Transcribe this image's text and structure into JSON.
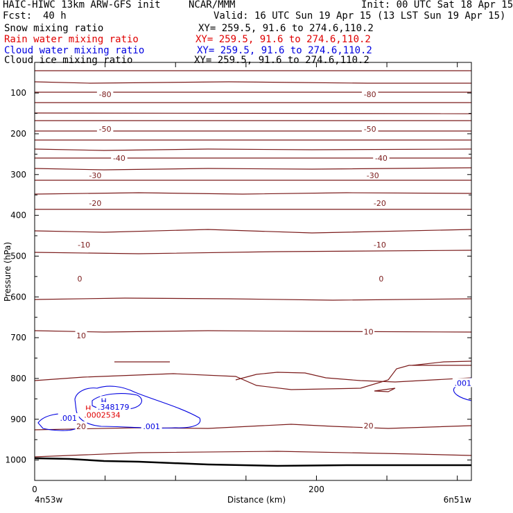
{
  "header": {
    "model": "HAIC-HIWC 13km ARW-GFS init",
    "org": "NCAR/MMM",
    "init": "Init: 00 UTC Sat 18 Apr 15",
    "fcst_label": "Fcst:",
    "fcst_value": "40 h",
    "valid": "Valid: 16 UTC Sun 19 Apr 15 (13 LST Sun 19 Apr 15)"
  },
  "fields": [
    {
      "name": "Snow mixing ratio",
      "xy": "XY= 259.5, 91.6 to 274.6,110.2",
      "color": "#000000"
    },
    {
      "name": "Rain water mixing ratio",
      "xy": "XY= 259.5, 91.6 to 274.6,110.2",
      "color": "#e00000"
    },
    {
      "name": "Cloud water mixing ratio",
      "xy": "XY= 259.5, 91.6 to 274.6,110.2",
      "color": "#0000e0"
    },
    {
      "name": "Cloud ice mixing ratio",
      "xy": "XY= 259.5, 91.6 to 274.6,110.2",
      "color": "#000000"
    }
  ],
  "chart_data": {
    "type": "line",
    "xlabel": "Distance (km)",
    "ylabel": "Pressure (hPa)",
    "xlim": [
      0,
      310
    ],
    "ylim": [
      1050,
      25
    ],
    "x_ticks": [
      0,
      200
    ],
    "y_ticks": [
      100,
      200,
      300,
      400,
      500,
      600,
      700,
      800,
      900,
      1000
    ],
    "x_endpoints": {
      "left": "4n53w",
      "right": "6n51w"
    },
    "contour_color": "#7a1a1a",
    "temperature_labels": [
      {
        "text": "-80",
        "x": 50,
        "y": 103
      },
      {
        "text": "-80",
        "x": 238,
        "y": 103
      },
      {
        "text": "-50",
        "x": 50,
        "y": 188
      },
      {
        "text": "-50",
        "x": 238,
        "y": 188
      },
      {
        "text": "-40",
        "x": 60,
        "y": 260
      },
      {
        "text": "-40",
        "x": 246,
        "y": 260
      },
      {
        "text": "-30",
        "x": 43,
        "y": 302
      },
      {
        "text": "-30",
        "x": 240,
        "y": 302
      },
      {
        "text": "-20",
        "x": 43,
        "y": 370
      },
      {
        "text": "-20",
        "x": 245,
        "y": 370
      },
      {
        "text": "-10",
        "x": 35,
        "y": 472
      },
      {
        "text": "-10",
        "x": 245,
        "y": 472
      },
      {
        "text": "0",
        "x": 32,
        "y": 555
      },
      {
        "text": "0",
        "x": 246,
        "y": 555
      },
      {
        "text": "10",
        "x": 33,
        "y": 695
      },
      {
        "text": "10",
        "x": 237,
        "y": 685
      },
      {
        "text": "20",
        "x": 33,
        "y": 917
      },
      {
        "text": "20",
        "x": 237,
        "y": 916
      }
    ],
    "cloud_water_labels": [
      {
        "text": ".001",
        "x": 24,
        "y": 897
      },
      {
        "text": ".001",
        "x": 83,
        "y": 917
      },
      {
        "text": ".001",
        "x": 304,
        "y": 811
      },
      {
        "text": "H",
        "x": 49,
        "y": 855
      },
      {
        "text": ".348179",
        "x": 56,
        "y": 870
      }
    ],
    "rain_labels": [
      {
        "text": "H",
        "x": 38,
        "y": 873
      },
      {
        "text": ".0002534",
        "x": 48,
        "y": 889
      }
    ]
  }
}
